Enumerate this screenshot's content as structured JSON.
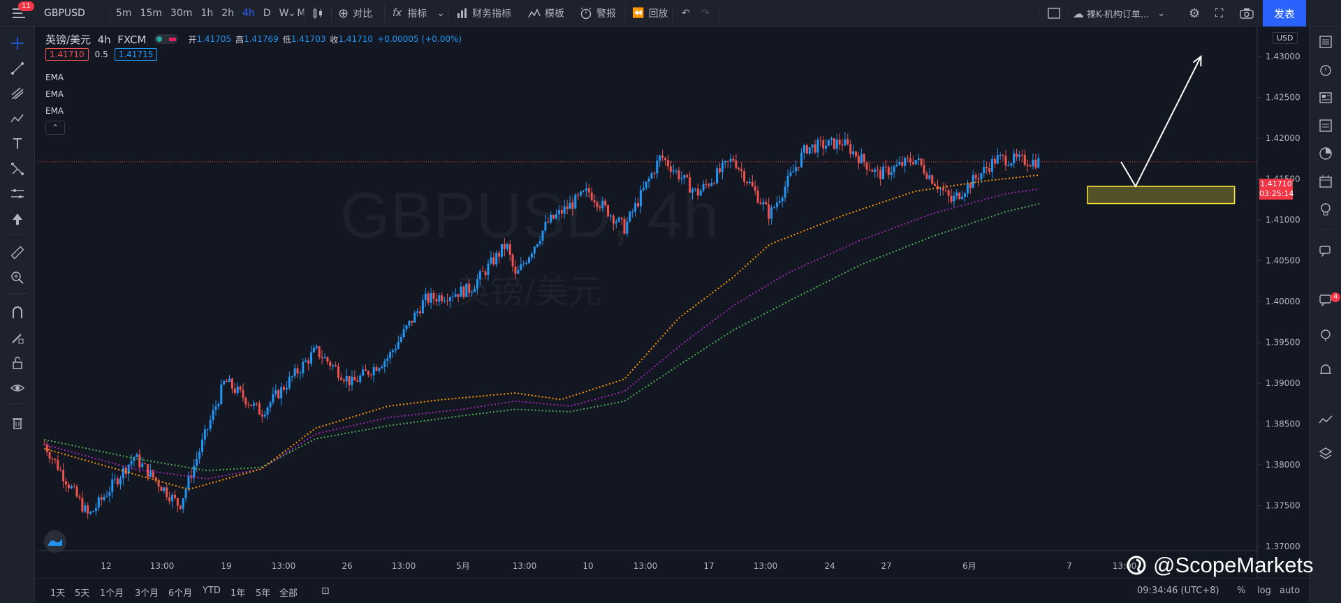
{
  "topbar": {
    "menu_badge": "11",
    "symbol": "GBPUSD",
    "intervals": [
      "5m",
      "15m",
      "30m",
      "1h",
      "2h",
      "4h",
      "D",
      "W",
      "M"
    ],
    "active_interval": "4h",
    "compare_label": "对比",
    "indicators_label": "指标",
    "financials_label": "财务指标",
    "templates_label": "模板",
    "alert_label": "警报",
    "replay_label": "回放",
    "layout_name": "裸K-机构订单...",
    "publish_label": "发表"
  },
  "legend": {
    "title": "英镑/美元",
    "interval": "4h",
    "exchange": "FXCM",
    "open_label": "开",
    "open": "1.41705",
    "high_label": "高",
    "high": "1.41769",
    "low_label": "低",
    "low": "1.41703",
    "close_label": "收",
    "close": "1.41710",
    "change": "+0.00005 (+0.00%)",
    "bid": "1.41710",
    "spread": "0.5",
    "ask": "1.41715",
    "indicators": [
      "EMA",
      "EMA",
      "EMA"
    ]
  },
  "watermark": {
    "symbol": "GBPUSD, 4h",
    "description": "英镑/美元"
  },
  "price_axis": {
    "currency": "USD",
    "current_price": "1.41710",
    "countdown": "03:25:14"
  },
  "bottombar": {
    "ranges": [
      "1天",
      "5天",
      "1个月",
      "3个月",
      "6个月",
      "YTD",
      "1年",
      "5年",
      "全部"
    ],
    "clock": "09:34:46 (UTC+8)",
    "percent": "%",
    "log": "log",
    "auto": "auto"
  },
  "brand": "@ScopeMarkets",
  "colors": {
    "up": "#2196f3",
    "down": "#ef5350",
    "ema_fast": "#ff9800",
    "ema_mid": "#9c27b0",
    "ema_slow": "#4caf50",
    "zone": "#ffeb3b"
  },
  "chart_data": {
    "type": "candlestick",
    "y_ticks": [
      "1.43000",
      "1.42500",
      "1.42000",
      "1.41500",
      "1.41000",
      "1.40500",
      "1.40000",
      "1.39500",
      "1.39000",
      "1.38500",
      "1.38000",
      "1.37500",
      "1.37000"
    ],
    "x_ticks": [
      "12",
      "13:00",
      "19",
      "13:00",
      "26",
      "13:00",
      "5月",
      "13:00",
      "10",
      "13:00",
      "17",
      "13:00",
      "24",
      "27",
      "6月",
      "7",
      "13:00"
    ],
    "ylim": [
      1.3695,
      1.4335
    ],
    "last_price": 1.4171,
    "points": [
      [
        1,
        1.3825
      ],
      [
        50,
        1.3737
      ],
      [
        100,
        1.381
      ],
      [
        150,
        1.375
      ],
      [
        200,
        1.3903
      ],
      [
        240,
        1.3864
      ],
      [
        300,
        1.394
      ],
      [
        340,
        1.39
      ],
      [
        380,
        1.3932
      ],
      [
        420,
        1.4002
      ],
      [
        470,
        1.4015
      ],
      [
        510,
        1.407
      ],
      [
        520,
        1.403
      ],
      [
        555,
        1.4096
      ],
      [
        600,
        1.4135
      ],
      [
        640,
        1.409
      ],
      [
        680,
        1.4178
      ],
      [
        720,
        1.4132
      ],
      [
        760,
        1.4175
      ],
      [
        800,
        1.4106
      ],
      [
        840,
        1.4188
      ],
      [
        880,
        1.4195
      ],
      [
        920,
        1.4155
      ],
      [
        960,
        1.4175
      ],
      [
        1000,
        1.4123
      ],
      [
        1050,
        1.4175
      ],
      [
        1098,
        1.4171
      ]
    ],
    "ema_fast": [
      [
        1,
        1.382
      ],
      [
        80,
        1.3795
      ],
      [
        160,
        1.377
      ],
      [
        240,
        1.3795
      ],
      [
        300,
        1.3845
      ],
      [
        380,
        1.3872
      ],
      [
        440,
        1.388
      ],
      [
        520,
        1.3888
      ],
      [
        570,
        1.388
      ],
      [
        640,
        1.3905
      ],
      [
        700,
        1.398
      ],
      [
        760,
        1.403
      ],
      [
        800,
        1.407
      ],
      [
        880,
        1.4105
      ],
      [
        960,
        1.4135
      ],
      [
        1040,
        1.4148
      ],
      [
        1098,
        1.4155
      ]
    ],
    "ema_mid": [
      [
        1,
        1.3825
      ],
      [
        100,
        1.3795
      ],
      [
        180,
        1.3783
      ],
      [
        240,
        1.3795
      ],
      [
        300,
        1.3838
      ],
      [
        380,
        1.3858
      ],
      [
        460,
        1.3868
      ],
      [
        520,
        1.3878
      ],
      [
        580,
        1.3872
      ],
      [
        640,
        1.389
      ],
      [
        700,
        1.3945
      ],
      [
        760,
        1.3995
      ],
      [
        820,
        1.4035
      ],
      [
        900,
        1.4075
      ],
      [
        980,
        1.4108
      ],
      [
        1060,
        1.4132
      ],
      [
        1098,
        1.4138
      ]
    ],
    "ema_slow": [
      [
        1,
        1.3831
      ],
      [
        100,
        1.3808
      ],
      [
        180,
        1.3793
      ],
      [
        240,
        1.3797
      ],
      [
        300,
        1.3832
      ],
      [
        380,
        1.3848
      ],
      [
        460,
        1.386
      ],
      [
        520,
        1.3868
      ],
      [
        580,
        1.3865
      ],
      [
        640,
        1.3878
      ],
      [
        700,
        1.3922
      ],
      [
        760,
        1.3965
      ],
      [
        820,
        1.4
      ],
      [
        900,
        1.4045
      ],
      [
        980,
        1.408
      ],
      [
        1060,
        1.411
      ],
      [
        1098,
        1.412
      ]
    ],
    "zone": {
      "x_start": 1150,
      "x_end": 1312,
      "y_top": 1.4141,
      "y_bottom": 1.412
    },
    "projection": [
      [
        1187,
        1.4171
      ],
      [
        1203,
        1.4141
      ],
      [
        1275,
        1.43
      ]
    ]
  }
}
